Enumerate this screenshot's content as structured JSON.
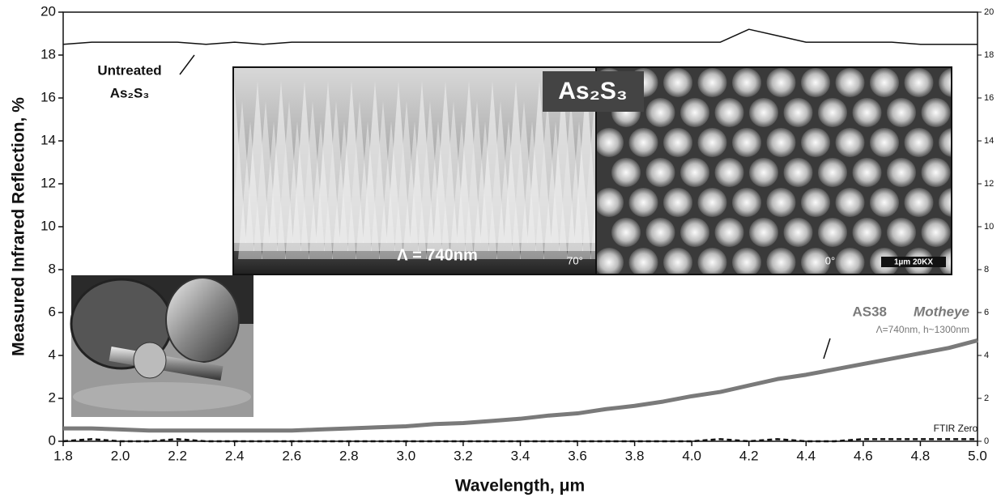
{
  "chart_data": {
    "type": "line",
    "xlabel": "Wavelength, μm",
    "ylabel": "Measured Infrared Reflection, %",
    "x": [
      1.8,
      1.9,
      2.0,
      2.1,
      2.2,
      2.3,
      2.4,
      2.5,
      2.6,
      2.7,
      2.8,
      2.9,
      3.0,
      3.1,
      3.2,
      3.3,
      3.4,
      3.5,
      3.6,
      3.7,
      3.8,
      3.9,
      4.0,
      4.1,
      4.2,
      4.3,
      4.4,
      4.5,
      4.6,
      4.7,
      4.8,
      4.9,
      5.0
    ],
    "series": [
      {
        "name": "Untreated",
        "color": "#111111",
        "width": 1.5,
        "line_style": "solid",
        "values": [
          18.5,
          18.6,
          18.6,
          18.6,
          18.6,
          18.5,
          18.6,
          18.5,
          18.6,
          18.6,
          18.6,
          18.6,
          18.6,
          18.6,
          18.6,
          18.6,
          18.6,
          18.6,
          18.6,
          18.6,
          18.6,
          18.6,
          18.6,
          18.6,
          19.2,
          18.9,
          18.6,
          18.6,
          18.6,
          18.6,
          18.5,
          18.5,
          18.5
        ]
      },
      {
        "name": "AS38",
        "color": "#7a7a7a",
        "width": 5,
        "line_style": "solid",
        "values": [
          0.6,
          0.6,
          0.55,
          0.5,
          0.5,
          0.5,
          0.5,
          0.5,
          0.5,
          0.55,
          0.6,
          0.65,
          0.7,
          0.8,
          0.85,
          0.95,
          1.05,
          1.2,
          1.3,
          1.5,
          1.65,
          1.85,
          2.1,
          2.3,
          2.6,
          2.9,
          3.1,
          3.35,
          3.6,
          3.85,
          4.1,
          4.35,
          4.7
        ]
      },
      {
        "name": "FTIR Zero",
        "color": "#111111",
        "width": 2.5,
        "line_style": "dashed",
        "values": [
          0.0,
          0.1,
          0.0,
          0.0,
          0.1,
          0.0,
          0.0,
          0.0,
          0.0,
          0.0,
          0.0,
          0.0,
          0.0,
          0.0,
          0.0,
          0.0,
          0.0,
          0.0,
          0.0,
          0.0,
          0.0,
          0.0,
          0.0,
          0.1,
          0.0,
          0.1,
          0.0,
          0.0,
          0.1,
          0.1,
          0.1,
          0.1,
          0.1
        ]
      }
    ],
    "xlim": [
      1.8,
      5.0
    ],
    "xticks": [
      1.8,
      {
        "value": 2,
        "label": "2.0"
      },
      2.2,
      2.4,
      2.6,
      2.8,
      {
        "value": 3,
        "label": "3.0"
      },
      3.2,
      3.4,
      3.6,
      3.8,
      {
        "value": 4,
        "label": "4.0"
      },
      4.2,
      4.4,
      4.6,
      4.8,
      {
        "value": 5,
        "label": "5.0"
      }
    ],
    "ylim": [
      0,
      20
    ],
    "yticks": [
      0,
      2,
      4,
      6,
      8,
      10,
      12,
      14,
      16,
      18,
      20
    ],
    "y2lim": [
      0,
      20
    ],
    "y2ticks": [
      0,
      2,
      4,
      6,
      8,
      10,
      12,
      14,
      16,
      18,
      20
    ],
    "grid": false,
    "annotations": [
      {
        "text": "Untreated"
      },
      {
        "text": "As₂S₃"
      },
      {
        "text": "AS38"
      },
      {
        "text": "Motheye"
      },
      {
        "text": "Λ=740nm, h~1300nm"
      },
      {
        "text": "FTIR Zero"
      }
    ]
  },
  "insets": {
    "material": "As₂S₃",
    "period": "Λ = 740nm",
    "tilt_left": "70°",
    "tilt_right": "0°",
    "scale_bar": "1µm 20KX"
  }
}
